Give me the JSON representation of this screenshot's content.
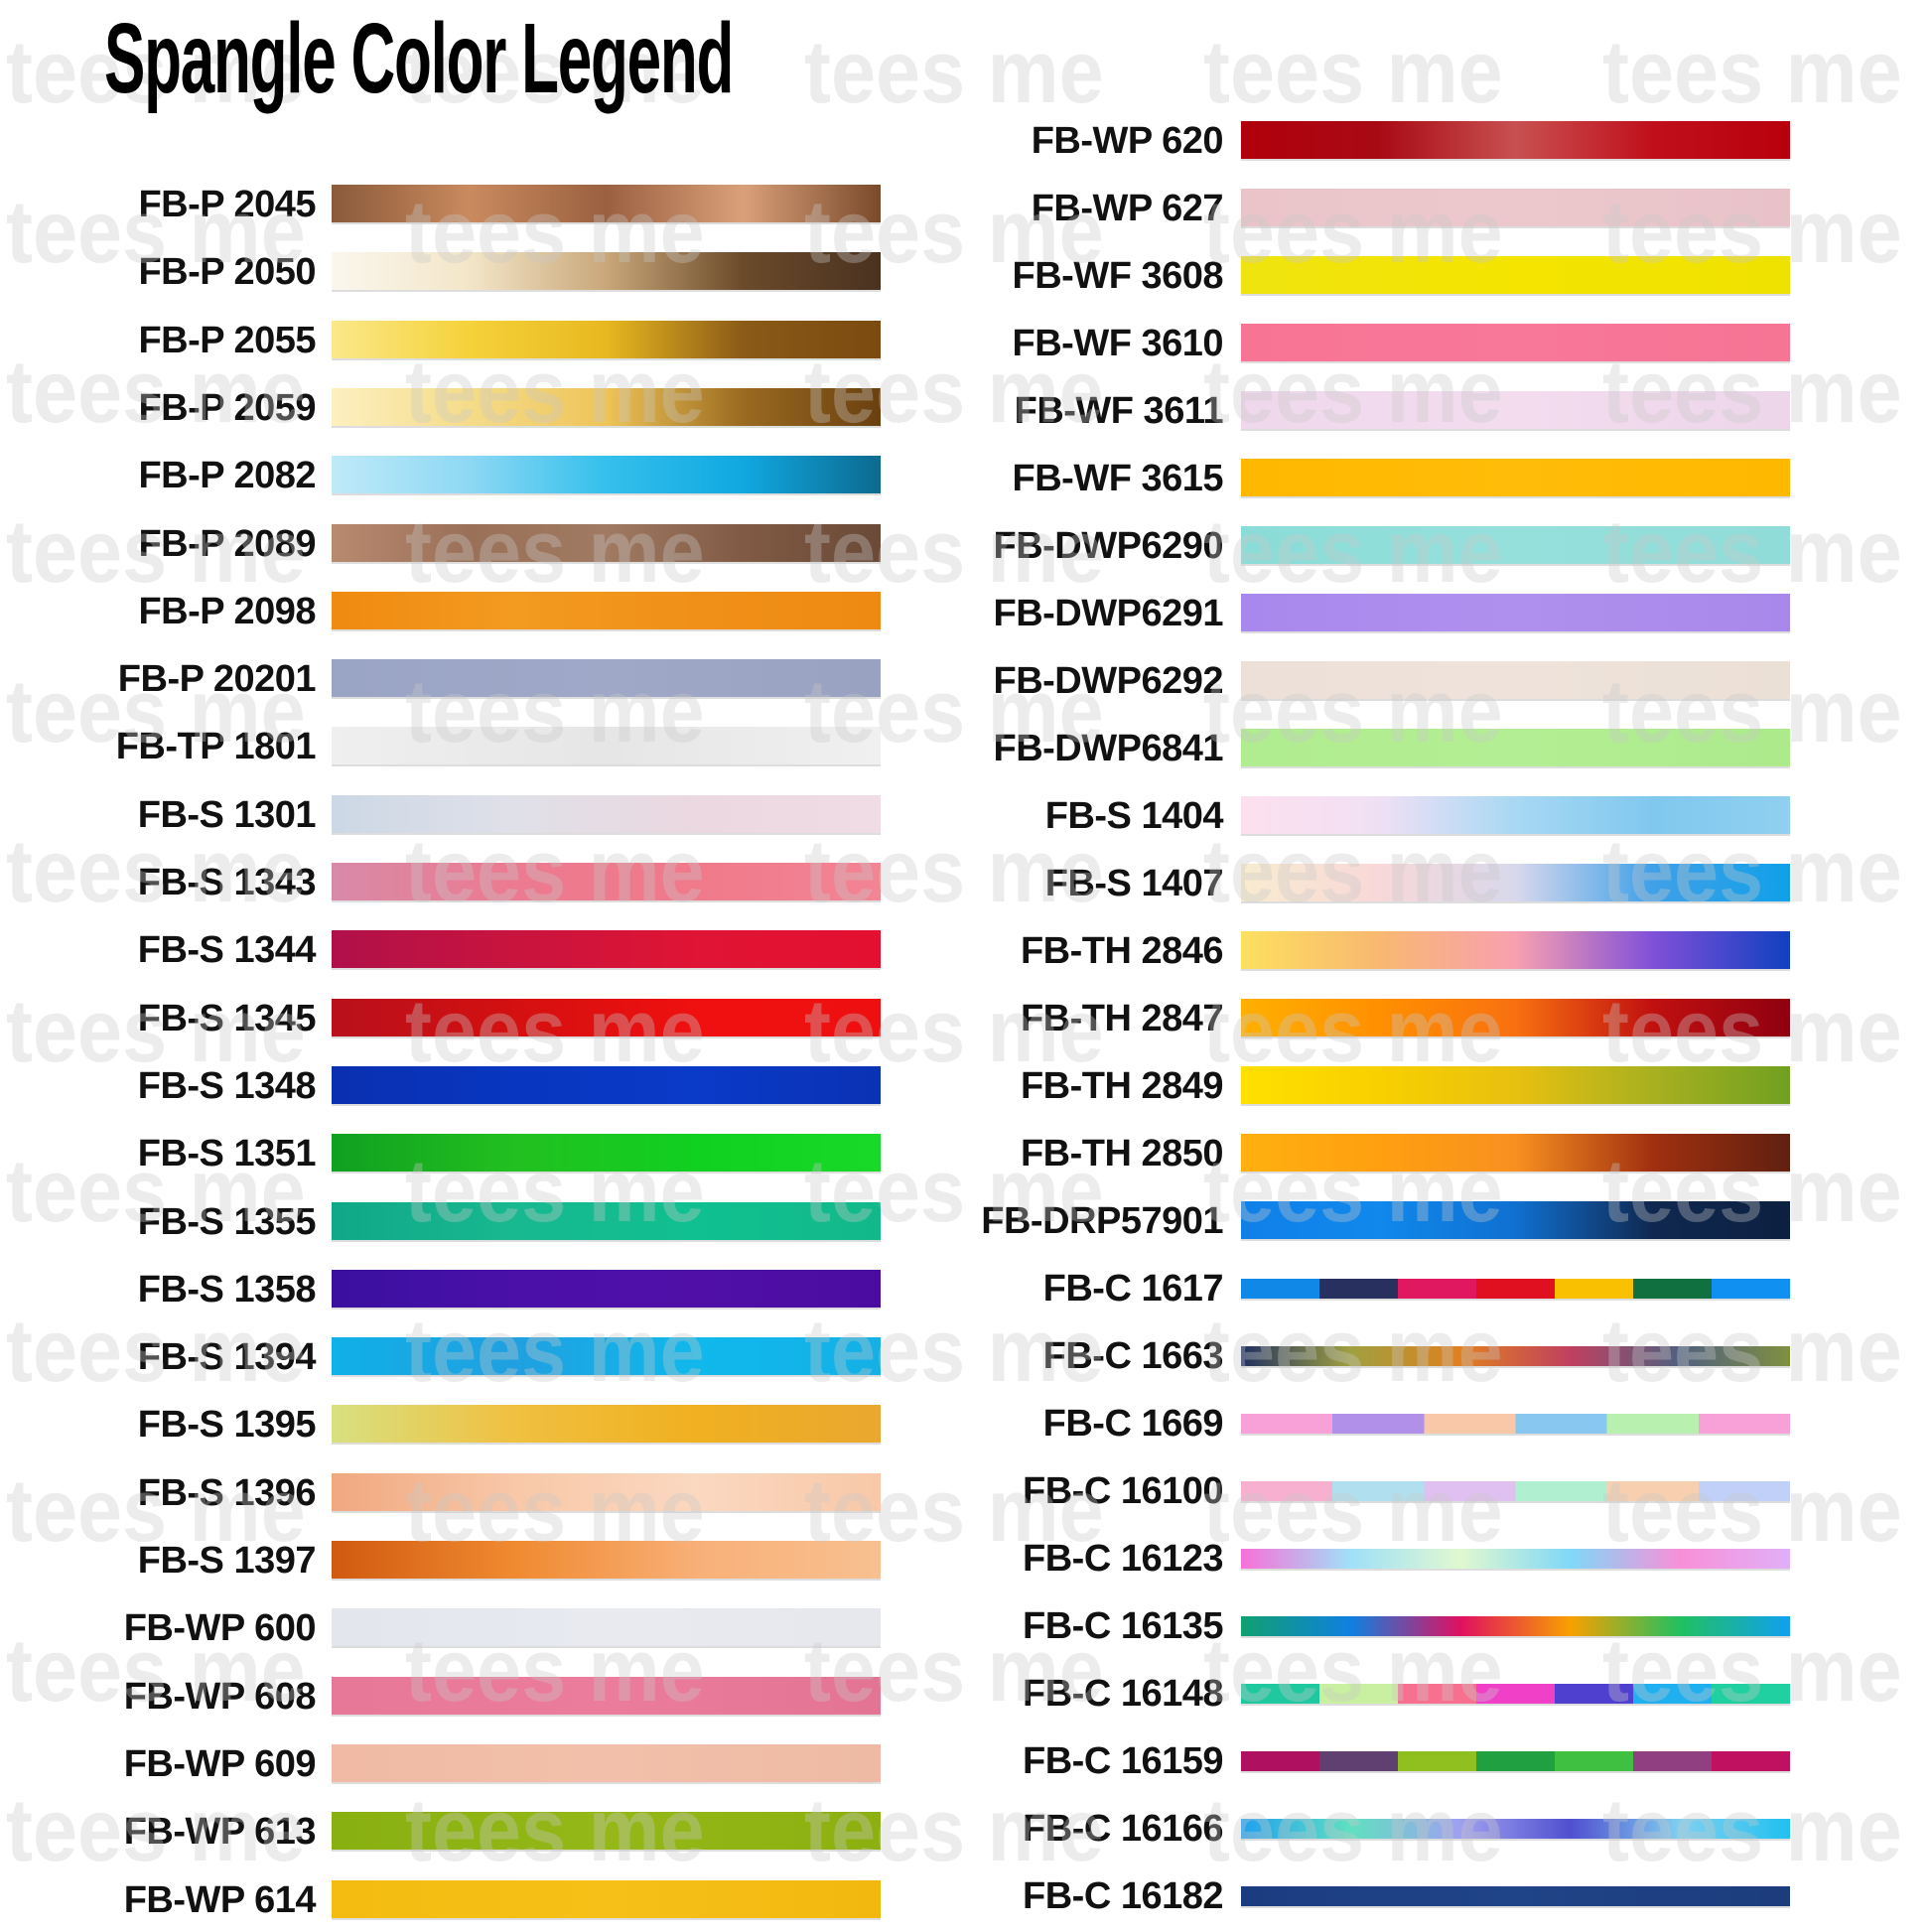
{
  "title": "Spangle Color Legend",
  "watermark": "tees me",
  "left": [
    {
      "code": "FB-P 2045",
      "colors": [
        "#8a5a3a",
        "#c98a5e",
        "#9a6040",
        "#d9a07a",
        "#7a4a2a"
      ]
    },
    {
      "code": "FB-P 2050",
      "colors": [
        "#fbf7ee",
        "#f3e6c8",
        "#c9a77a",
        "#6a4a2a",
        "#4a3220"
      ]
    },
    {
      "code": "FB-P 2055",
      "colors": [
        "#fbe88a",
        "#f5d23a",
        "#e8b820",
        "#8a5a18",
        "#7a4a10"
      ]
    },
    {
      "code": "FB-P 2059",
      "colors": [
        "#fdf0c0",
        "#f5dc8a",
        "#eec458",
        "#9a6a20",
        "#6a4010"
      ]
    },
    {
      "code": "FB-P 2082",
      "colors": [
        "#bfeaf8",
        "#8ed8f4",
        "#34c0ec",
        "#10a8e0",
        "#0c6a90"
      ]
    },
    {
      "code": "FB-P 2089",
      "colors": [
        "#b88a70",
        "#9a7058",
        "#a07a62",
        "#805a44",
        "#6a4a38"
      ]
    },
    {
      "code": "FB-P 2098",
      "colors": [
        "#f08a10",
        "#f39a20",
        "#f09018",
        "#ee8a12"
      ]
    },
    {
      "code": "FB-P 20201",
      "colors": [
        "#9aa4c4",
        "#a0a8c8",
        "#9aa2c2"
      ]
    },
    {
      "code": "FB-TP 1801",
      "colors": [
        "#efefef",
        "#e6e6e6",
        "#f0f0f0"
      ]
    },
    {
      "code": "FB-S 1301",
      "colors": [
        "#ccd8e6",
        "#e0e0e8",
        "#ebd8e0",
        "#f0dce4"
      ]
    },
    {
      "code": "FB-S 1343",
      "colors": [
        "#d88aa8",
        "#ec7a90",
        "#f07a8a",
        "#f28494"
      ]
    },
    {
      "code": "FB-S 1344",
      "colors": [
        "#b0104a",
        "#c8143e",
        "#e01434",
        "#e41030"
      ]
    },
    {
      "code": "FB-S 1345",
      "colors": [
        "#b8101c",
        "#d41010",
        "#f01010",
        "#ee1010"
      ]
    },
    {
      "code": "FB-S 1348",
      "colors": [
        "#0a30b0",
        "#0836c0",
        "#0a3ac8",
        "#0a32b4"
      ]
    },
    {
      "code": "FB-S 1351",
      "colors": [
        "#10a020",
        "#22c020",
        "#10d020",
        "#18d828"
      ]
    },
    {
      "code": "FB-S 1355",
      "colors": [
        "#10a888",
        "#18b890",
        "#10c090",
        "#12b88a"
      ]
    },
    {
      "code": "FB-S 1358",
      "colors": [
        "#3a10a0",
        "#4a10a8",
        "#5010a8",
        "#4a0ca0"
      ]
    },
    {
      "code": "FB-S 1394",
      "colors": [
        "#10b0e8",
        "#20a0e0",
        "#10b8ec",
        "#14b0e6"
      ]
    },
    {
      "code": "FB-S 1395",
      "colors": [
        "#d8e080",
        "#f0c040",
        "#f0b020",
        "#eaa830"
      ]
    },
    {
      "code": "FB-S 1396",
      "colors": [
        "#f0a880",
        "#f8c8a8",
        "#fbd8c0",
        "#f8c8a8"
      ]
    },
    {
      "code": "FB-S 1397",
      "colors": [
        "#d05a10",
        "#f08a30",
        "#f8b078",
        "#f8c090"
      ]
    },
    {
      "code": "FB-WP 600",
      "colors": [
        "#e4e6ee",
        "#e8eaf0",
        "#e6e8ee"
      ]
    },
    {
      "code": "FB-WP 608",
      "colors": [
        "#e87898",
        "#ec7c9c",
        "#e47494"
      ]
    },
    {
      "code": "FB-WP 609",
      "colors": [
        "#f0baa4",
        "#f2c0aa",
        "#eebaa4"
      ]
    },
    {
      "code": "FB-WP 613",
      "colors": [
        "#88b010",
        "#94b818",
        "#8cb010"
      ]
    },
    {
      "code": "FB-WP 614",
      "colors": [
        "#f4bc10",
        "#f6c018",
        "#f2b810"
      ]
    }
  ],
  "right": [
    {
      "code": "FB-WP 620",
      "colors": [
        "#b0000c",
        "#a80a14",
        "#c85050",
        "#c0101c",
        "#b8000c"
      ]
    },
    {
      "code": "FB-WP 627",
      "colors": [
        "#eac4c8",
        "#ecc8cc",
        "#e8c2c8"
      ]
    },
    {
      "code": "FB-WF 3608",
      "colors": [
        "#f0e410",
        "#f4e400",
        "#f0e200"
      ]
    },
    {
      "code": "FB-WF 3610",
      "colors": [
        "#f87494",
        "#f8789a",
        "#f67494"
      ]
    },
    {
      "code": "FB-WF 3611",
      "colors": [
        "#f0d8ec",
        "#f2dcee",
        "#eed6ea"
      ]
    },
    {
      "code": "FB-WF 3615",
      "colors": [
        "#ffb800",
        "#ffbc08",
        "#ffb800"
      ]
    },
    {
      "code": "FB-DWP6290",
      "colors": [
        "#8adcd8",
        "#96e0dc",
        "#90dcd8"
      ]
    },
    {
      "code": "FB-DWP6291",
      "colors": [
        "#a888ec",
        "#b090ee",
        "#a888ea"
      ]
    },
    {
      "code": "FB-DWP6292",
      "colors": [
        "#ece0d8",
        "#eee2da",
        "#ebe0d6"
      ]
    },
    {
      "code": "FB-DWP6841",
      "colors": [
        "#b0ec90",
        "#b4ee94",
        "#acea8c"
      ]
    },
    {
      "code": "FB-S 1404",
      "colors": [
        "#fde0ee",
        "#f0e0f4",
        "#a8d8f4",
        "#80c8ee",
        "#90d0f0"
      ]
    },
    {
      "code": "FB-S 1407",
      "colors": [
        "#f8ecd0",
        "#f8d8d8",
        "#d8d8ec",
        "#40a0e8",
        "#10a0e8"
      ]
    },
    {
      "code": "FB-TH 2846",
      "colors": [
        "#fde060",
        "#f8b870",
        "#f8a0b0",
        "#8050d8",
        "#1040c0"
      ]
    },
    {
      "code": "FB-TH 2847",
      "colors": [
        "#ffb000",
        "#ff9000",
        "#f87010",
        "#c01010",
        "#900010"
      ]
    },
    {
      "code": "FB-TH 2849",
      "colors": [
        "#ffe000",
        "#f8d000",
        "#e8c010",
        "#a8b020",
        "#70a020"
      ]
    },
    {
      "code": "FB-TH 2850",
      "colors": [
        "#ffb010",
        "#ffa010",
        "#f89020",
        "#a03010",
        "#602010"
      ]
    },
    {
      "code": "FB-DRP57901",
      "colors": [
        "#1080e8",
        "#1088ec",
        "#1070d0",
        "#102850",
        "#0c2040"
      ]
    },
    {
      "code": "FB-C 1617",
      "colors": [
        "#1088e8",
        "#283060",
        "#e01860",
        "#e01020",
        "#f8c000",
        "#107040",
        "#1090f0"
      ],
      "thin": true,
      "stripes": true
    },
    {
      "code": "FB-C 1663",
      "colors": [
        "#203060",
        "#a0a040",
        "#e08020",
        "#c04060",
        "#506080",
        "#809040"
      ],
      "thin": true
    },
    {
      "code": "FB-C 1669",
      "colors": [
        "#f8a0d8",
        "#b090e8",
        "#f8c8a8",
        "#88c8f0",
        "#b8f0b0",
        "#f8a0d8"
      ],
      "thin": true,
      "stripes": true
    },
    {
      "code": "FB-C 16100",
      "colors": [
        "#f8b0d0",
        "#b0e0f0",
        "#e0c0f0",
        "#b0f0d0",
        "#f8d0b0",
        "#c0d0f8"
      ],
      "thin": true,
      "stripes": true
    },
    {
      "code": "FB-C 16123",
      "colors": [
        "#f870d8",
        "#a0e0f8",
        "#e0f8d0",
        "#80d8f8",
        "#f890d8",
        "#e0b0f8"
      ],
      "thin": true
    },
    {
      "code": "FB-C 16135",
      "colors": [
        "#10a070",
        "#1080e0",
        "#e01060",
        "#f8a000",
        "#20c060",
        "#10a0f0"
      ],
      "thin": true
    },
    {
      "code": "FB-C 16148",
      "colors": [
        "#20c8a0",
        "#c8f0a0",
        "#f87090",
        "#f040c8",
        "#5040d0",
        "#20b0f0",
        "#20d0a0"
      ],
      "thin": true,
      "stripes": true
    },
    {
      "code": "FB-C 16159",
      "colors": [
        "#b01060",
        "#604070",
        "#90c020",
        "#20a040",
        "#40c040",
        "#904080",
        "#c01060"
      ],
      "thin": true,
      "stripes": true
    },
    {
      "code": "FB-C 16166",
      "colors": [
        "#20a0f0",
        "#60e0c0",
        "#a0a0f0",
        "#5050d0",
        "#80d0f0",
        "#20c0f0"
      ],
      "thin": true
    },
    {
      "code": "FB-C 16182",
      "colors": [
        "#1c3c80",
        "#204488",
        "#1c3c7c"
      ],
      "thin": true
    }
  ]
}
